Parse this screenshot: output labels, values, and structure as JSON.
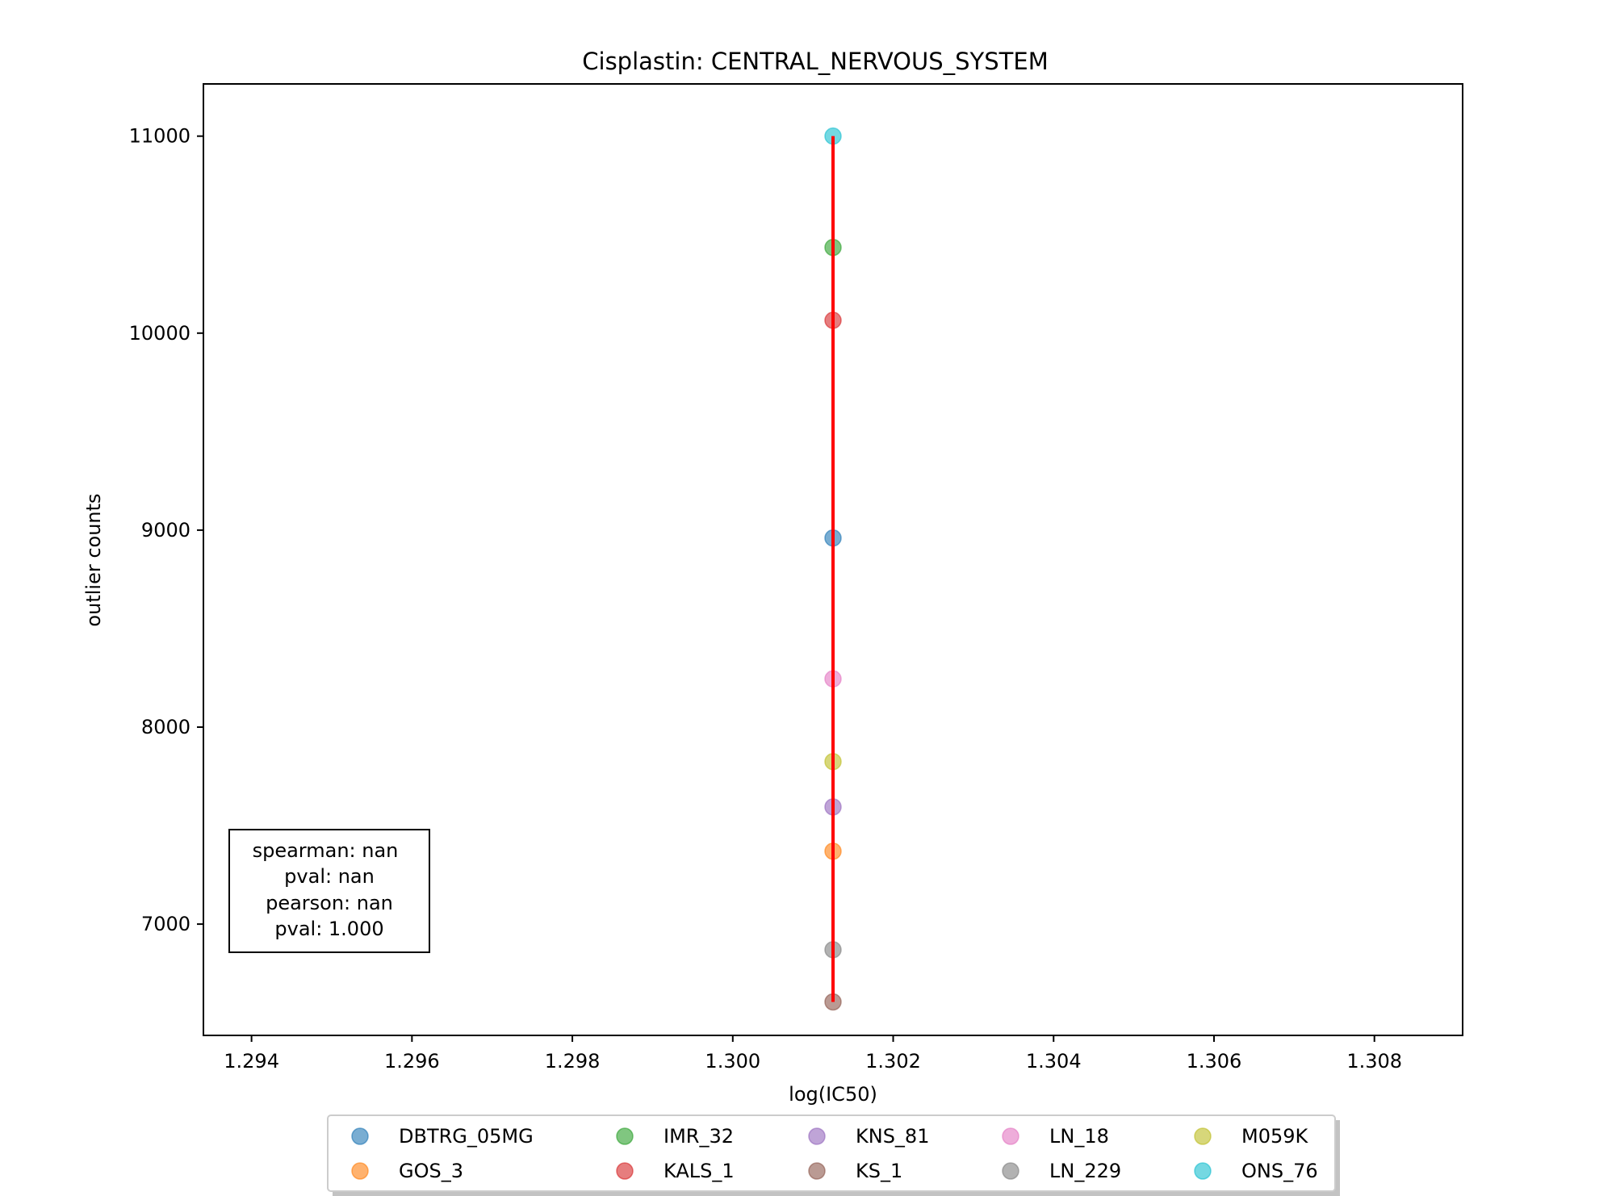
{
  "chart_data": {
    "type": "scatter",
    "title": "Cisplastin: CENTRAL_NERVOUS_SYSTEM",
    "xlabel": "log(IC50)",
    "ylabel": "outlier counts",
    "xlim": [
      1.2934,
      1.3091
    ],
    "ylim": [
      6435,
      11265
    ],
    "xticks": [
      1.294,
      1.296,
      1.298,
      1.3,
      1.302,
      1.304,
      1.306,
      1.308
    ],
    "xtick_labels": [
      "1.294",
      "1.296",
      "1.298",
      "1.300",
      "1.302",
      "1.304",
      "1.306",
      "1.308"
    ],
    "yticks": [
      7000,
      8000,
      9000,
      10000,
      11000
    ],
    "ytick_labels": [
      "7000",
      "8000",
      "9000",
      "10000",
      "11000"
    ],
    "grid": false,
    "legend_position": "bottom-center",
    "series": [
      {
        "name": "DBTRG_05MG",
        "color": "#1f77b4",
        "x": 1.30125,
        "y": 8960
      },
      {
        "name": "GOS_3",
        "color": "#ff7f0e",
        "x": 1.30125,
        "y": 7370
      },
      {
        "name": "IMR_32",
        "color": "#2ca02c",
        "x": 1.30125,
        "y": 10435
      },
      {
        "name": "KALS_1",
        "color": "#d62728",
        "x": 1.30125,
        "y": 10065
      },
      {
        "name": "KNS_81",
        "color": "#9467bd",
        "x": 1.30125,
        "y": 7595
      },
      {
        "name": "KS_1",
        "color": "#8c564b",
        "x": 1.30125,
        "y": 6605
      },
      {
        "name": "LN_18",
        "color": "#e377c2",
        "x": 1.30125,
        "y": 8245
      },
      {
        "name": "LN_229",
        "color": "#7f7f7f",
        "x": 1.30125,
        "y": 6870
      },
      {
        "name": "M059K",
        "color": "#bcbd22",
        "x": 1.30125,
        "y": 7825
      },
      {
        "name": "ONS_76",
        "color": "#17becf",
        "x": 1.30125,
        "y": 11000
      }
    ],
    "fit_line": {
      "color": "#ff0000",
      "x": [
        1.30125,
        1.30125
      ],
      "y": [
        6605,
        11000
      ]
    },
    "annotation": {
      "lines": [
        "spearman: nan",
        "pval: nan",
        "pearson: nan",
        "pval: 1.000"
      ]
    }
  }
}
